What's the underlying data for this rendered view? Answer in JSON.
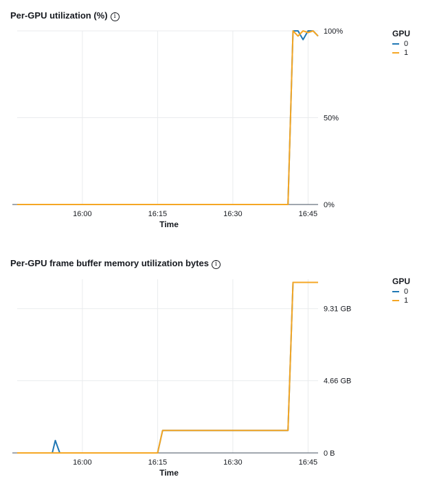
{
  "charts": [
    {
      "title": "Per-GPU utilization (%)",
      "legend_title": "GPU",
      "series_names": [
        "0",
        "1"
      ]
    },
    {
      "title": "Per-GPU frame buffer memory utilization bytes",
      "legend_title": "GPU",
      "series_names": [
        "0",
        "1"
      ]
    }
  ],
  "colors": {
    "series_0": "#1f77b4",
    "series_1": "#f5a623",
    "grid": "#e9ebed",
    "axis": "#414d5c"
  },
  "chart_data": [
    {
      "type": "line",
      "title": "Per-GPU utilization (%)",
      "xlabel": "Time",
      "ylabel": "",
      "x_ticks": [
        "16:00",
        "16:15",
        "16:30",
        "16:45"
      ],
      "xlim": [
        "15:47",
        "16:47"
      ],
      "y_ticks": [
        "0%",
        "50%",
        "100%"
      ],
      "ylim": [
        0,
        100
      ],
      "y_axis_side": "right",
      "grid": true,
      "legend": "top-right",
      "series": [
        {
          "name": "0",
          "points": [
            [
              "15:47",
              0
            ],
            [
              "16:41",
              0
            ],
            [
              "16:42",
              100
            ],
            [
              "16:43",
              100
            ],
            [
              "16:44",
              95
            ],
            [
              "16:45",
              100
            ],
            [
              "16:46",
              100
            ],
            [
              "16:47",
              97
            ]
          ]
        },
        {
          "name": "1",
          "points": [
            [
              "15:47",
              0
            ],
            [
              "16:41",
              0
            ],
            [
              "16:42",
              100
            ],
            [
              "16:43",
              97
            ],
            [
              "16:44",
              100
            ],
            [
              "16:45",
              99
            ],
            [
              "16:46",
              100
            ],
            [
              "16:47",
              97
            ]
          ]
        }
      ]
    },
    {
      "type": "line",
      "title": "Per-GPU frame buffer memory utilization bytes",
      "xlabel": "Time",
      "ylabel": "",
      "x_ticks": [
        "16:00",
        "16:15",
        "16:30",
        "16:45"
      ],
      "xlim": [
        "15:47",
        "16:47"
      ],
      "y_ticks": [
        "0 B",
        "4.66 GB",
        "9.31 GB"
      ],
      "y_tick_values": [
        0,
        4.66,
        9.31
      ],
      "ylim": [
        0,
        11.2
      ],
      "y_axis_side": "right",
      "grid": true,
      "legend": "top-right",
      "series": [
        {
          "name": "0",
          "points": [
            [
              "15:47",
              0
            ],
            [
              "15:54",
              0
            ],
            [
              "15:54.6",
              0.8
            ],
            [
              "15:55.5",
              0
            ],
            [
              "16:15",
              0
            ],
            [
              "16:16",
              1.45
            ],
            [
              "16:41",
              1.45
            ],
            [
              "16:42",
              11.0
            ],
            [
              "16:47",
              11.0
            ]
          ]
        },
        {
          "name": "1",
          "points": [
            [
              "15:47",
              0
            ],
            [
              "16:15",
              0
            ],
            [
              "16:16",
              1.45
            ],
            [
              "16:41",
              1.45
            ],
            [
              "16:42",
              11.0
            ],
            [
              "16:47",
              11.0
            ]
          ]
        }
      ]
    }
  ]
}
